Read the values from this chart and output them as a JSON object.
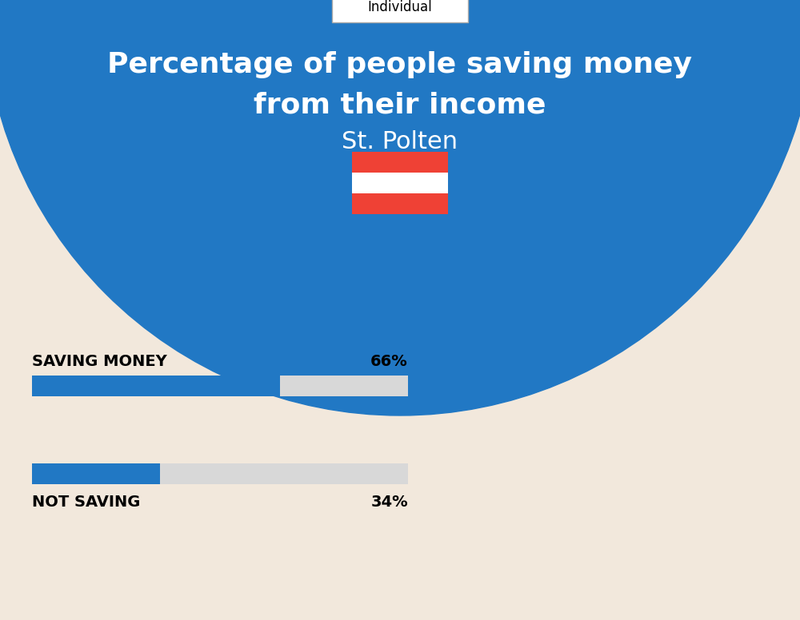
{
  "title_line1": "Percentage of people saving money",
  "title_line2": "from their income",
  "subtitle": "St. Polten",
  "tab_label": "Individual",
  "background_color": "#F2E8DC",
  "blue_bg_color": "#2178C4",
  "saving_label": "SAVING MONEY",
  "saving_value": 66,
  "saving_pct_text": "66%",
  "not_saving_label": "NOT SAVING",
  "not_saving_value": 34,
  "not_saving_pct_text": "34%",
  "bar_blue": "#2178C4",
  "bar_gray": "#D8D8D8",
  "title_color": "#FFFFFF",
  "subtitle_color": "#FFFFFF",
  "label_color": "#000000",
  "tab_border_color": "#AAAAAA",
  "flag_red": "#EF4135",
  "flag_white": "#FFFFFF"
}
